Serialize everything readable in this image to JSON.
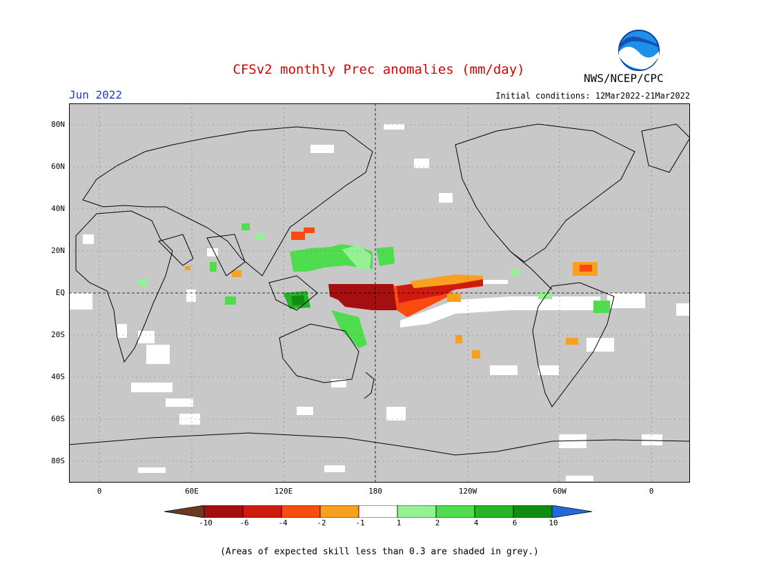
{
  "title": "CFSv2 monthly Prec anomalies (mm/day)",
  "agency": "NWS/NCEP/CPC",
  "logo_text": "NOAA",
  "forecast_month": "Jun 2022",
  "initial_conditions": "Initial conditions: 12Mar2022-21Mar2022",
  "lat_labels": [
    "80N",
    "60N",
    "40N",
    "20N",
    "EQ",
    "20S",
    "40S",
    "60S",
    "80S"
  ],
  "lon_labels": [
    "0",
    "60E",
    "120E",
    "180",
    "120W",
    "60W",
    "0"
  ],
  "colorbar": {
    "labels": [
      "-10",
      "-6",
      "-4",
      "-2",
      "-1",
      "1",
      "2",
      "4",
      "6",
      "10"
    ],
    "colors": [
      "#6b3a1e",
      "#a50f0f",
      "#d11a0e",
      "#f94a10",
      "#f9a020",
      "#ffffff",
      "#96f096",
      "#4fdc4f",
      "#28b428",
      "#108c10",
      "#1e6be0"
    ]
  },
  "footnote": "(Areas of expected skill less than 0.3 are shaded in grey.)",
  "colors": {
    "skill_mask_grey": "#c8c8c8",
    "title_red": "#e00000",
    "month_blue": "#1a3cd6"
  }
}
